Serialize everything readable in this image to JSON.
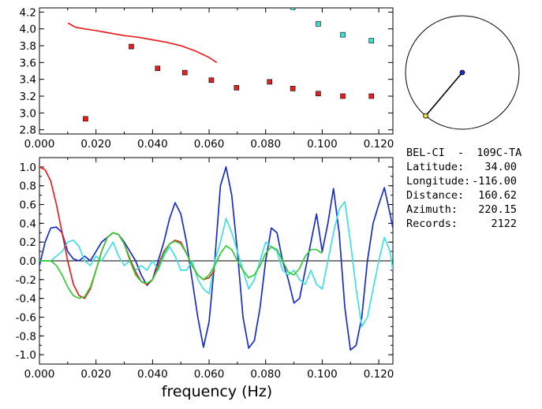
{
  "chart_data": [
    {
      "type": "scatter",
      "xlim": [
        0.0,
        0.125
      ],
      "ylim": [
        2.75,
        4.25
      ],
      "xticks": [
        "0.000",
        "0.020",
        "0.040",
        "0.060",
        "0.080",
        "0.100",
        "0.120"
      ],
      "yticks": [
        "2.8",
        "3.0",
        "3.2",
        "3.4",
        "3.6",
        "3.8",
        "4.0",
        "4.2"
      ],
      "grid": false,
      "series": [
        {
          "kind": "line",
          "color": "#e62020",
          "x": [
            0.0101,
            0.0127,
            0.016,
            0.02,
            0.025,
            0.03,
            0.035,
            0.04,
            0.045,
            0.05,
            0.055,
            0.06,
            0.0627
          ],
          "y": [
            4.07,
            4.02,
            4.0,
            3.98,
            3.95,
            3.92,
            3.9,
            3.87,
            3.84,
            3.8,
            3.74,
            3.66,
            3.6
          ]
        },
        {
          "kind": "markers",
          "color": "#e62020",
          "x": [
            0.0163,
            0.0325,
            0.0418,
            0.0514,
            0.0608,
            0.0697,
            0.0814,
            0.0896,
            0.0986,
            0.1073,
            0.1174
          ],
          "y": [
            2.93,
            3.79,
            3.53,
            3.48,
            3.39,
            3.3,
            3.37,
            3.29,
            3.23,
            3.2,
            3.2
          ]
        },
        {
          "kind": "markers",
          "color": "#40e0d0",
          "x": [
            0.0896,
            0.0986,
            0.1073,
            0.1174
          ],
          "y": [
            4.26,
            4.06,
            3.93,
            3.86
          ]
        }
      ]
    },
    {
      "type": "line",
      "xlim": [
        0.0,
        0.125
      ],
      "ylim": [
        -1.1,
        1.1
      ],
      "xticks": [
        "0.000",
        "0.020",
        "0.040",
        "0.060",
        "0.080",
        "0.100",
        "0.120"
      ],
      "yticks": [
        "1.0",
        "0.8",
        "0.6",
        "0.4",
        "0.2",
        "0.0",
        "-0.2",
        "-0.4",
        "-0.6",
        "-0.8",
        "-1.0"
      ],
      "xlabel": "frequency (Hz)",
      "grid": false,
      "zero_line": true,
      "series": [
        {
          "color": "#1a2ccc",
          "x": [
            0.0,
            0.002,
            0.004,
            0.006,
            0.008,
            0.01,
            0.012,
            0.014,
            0.016,
            0.018,
            0.02,
            0.022,
            0.024,
            0.026,
            0.028,
            0.03,
            0.032,
            0.034,
            0.036,
            0.038,
            0.04,
            0.042,
            0.044,
            0.046,
            0.048,
            0.05,
            0.052,
            0.054,
            0.056,
            0.058,
            0.06,
            0.062,
            0.064,
            0.066,
            0.068,
            0.07,
            0.072,
            0.074,
            0.076,
            0.078,
            0.08,
            0.082,
            0.084,
            0.086,
            0.088,
            0.09,
            0.092,
            0.094,
            0.096,
            0.098,
            0.1,
            0.102,
            0.104,
            0.106,
            0.108,
            0.11,
            0.112,
            0.114,
            0.116,
            0.118,
            0.12,
            0.122,
            0.124,
            0.125
          ],
          "y": [
            -0.05,
            0.2,
            0.35,
            0.36,
            0.3,
            0.1,
            0.02,
            0.0,
            0.05,
            0.0,
            0.1,
            0.2,
            0.25,
            0.3,
            0.28,
            0.2,
            0.1,
            0.0,
            -0.15,
            -0.26,
            -0.2,
            0.0,
            0.2,
            0.45,
            0.62,
            0.5,
            0.2,
            -0.2,
            -0.6,
            -0.92,
            -0.65,
            0.0,
            0.8,
            1.0,
            0.7,
            0.1,
            -0.6,
            -0.93,
            -0.85,
            -0.5,
            0.0,
            0.35,
            0.3,
            0.0,
            -0.2,
            -0.45,
            -0.4,
            -0.1,
            0.2,
            0.5,
            0.1,
            0.4,
            0.77,
            0.3,
            -0.5,
            -0.95,
            -0.9,
            -0.6,
            0.0,
            0.4,
            0.6,
            0.78,
            0.5,
            0.35
          ]
        },
        {
          "color": "#40e0e0",
          "x": [
            0.0,
            0.004,
            0.008,
            0.01,
            0.012,
            0.014,
            0.016,
            0.018,
            0.02,
            0.022,
            0.024,
            0.026,
            0.028,
            0.03,
            0.032,
            0.034,
            0.036,
            0.038,
            0.04,
            0.042,
            0.044,
            0.046,
            0.048,
            0.05,
            0.052,
            0.054,
            0.056,
            0.058,
            0.06,
            0.062,
            0.064,
            0.066,
            0.068,
            0.07,
            0.072,
            0.074,
            0.076,
            0.078,
            0.08,
            0.082,
            0.084,
            0.086,
            0.088,
            0.09,
            0.092,
            0.094,
            0.096,
            0.098,
            0.1,
            0.102,
            0.104,
            0.106,
            0.108,
            0.11,
            0.112,
            0.114,
            0.116,
            0.118,
            0.12,
            0.122,
            0.124,
            0.125
          ],
          "y": [
            0.0,
            0.0,
            0.1,
            0.2,
            0.22,
            0.15,
            0.0,
            -0.05,
            0.05,
            0.0,
            0.1,
            0.2,
            0.05,
            -0.05,
            0.0,
            -0.1,
            -0.05,
            -0.1,
            0.0,
            -0.1,
            0.05,
            0.15,
            0.05,
            -0.1,
            -0.1,
            0.0,
            -0.2,
            -0.3,
            -0.35,
            0.0,
            0.2,
            0.45,
            0.3,
            0.1,
            -0.1,
            -0.3,
            -0.2,
            0.0,
            0.2,
            0.15,
            0.1,
            -0.1,
            -0.15,
            -0.1,
            -0.2,
            -0.25,
            -0.1,
            -0.25,
            -0.3,
            0.0,
            0.3,
            0.55,
            0.63,
            0.2,
            -0.3,
            -0.7,
            -0.6,
            -0.3,
            0.0,
            0.25,
            0.1,
            -0.1
          ]
        },
        {
          "color": "#e62020",
          "x": [
            0.0,
            0.002,
            0.004,
            0.006,
            0.008,
            0.01,
            0.012,
            0.014,
            0.016,
            0.018,
            0.02,
            0.022,
            0.024,
            0.026,
            0.028,
            0.03,
            0.032,
            0.034,
            0.036,
            0.038,
            0.04,
            0.042,
            0.044,
            0.046,
            0.048,
            0.05,
            0.052,
            0.054,
            0.056,
            0.058,
            0.06,
            0.062
          ],
          "y": [
            1.0,
            0.97,
            0.85,
            0.6,
            0.3,
            0.0,
            -0.25,
            -0.37,
            -0.4,
            -0.3,
            -0.1,
            0.1,
            0.25,
            0.3,
            0.28,
            0.18,
            0.02,
            -0.12,
            -0.22,
            -0.25,
            -0.2,
            -0.05,
            0.1,
            0.18,
            0.22,
            0.2,
            0.08,
            -0.05,
            -0.15,
            -0.2,
            -0.18,
            -0.1
          ]
        },
        {
          "color": "#33cc33",
          "x": [
            0.0,
            0.002,
            0.004,
            0.006,
            0.008,
            0.01,
            0.012,
            0.014,
            0.016,
            0.018,
            0.02,
            0.022,
            0.024,
            0.026,
            0.028,
            0.03,
            0.032,
            0.034,
            0.036,
            0.038,
            0.04,
            0.042,
            0.044,
            0.046,
            0.048,
            0.05,
            0.052,
            0.054,
            0.056,
            0.058,
            0.06,
            0.062,
            0.064,
            0.066,
            0.068,
            0.07,
            0.072,
            0.074,
            0.076,
            0.078,
            0.08,
            0.082,
            0.084,
            0.086,
            0.088,
            0.09,
            0.092,
            0.094,
            0.096,
            0.098,
            0.1
          ],
          "y": [
            0.0,
            0.0,
            0.0,
            -0.05,
            -0.15,
            -0.28,
            -0.37,
            -0.4,
            -0.38,
            -0.28,
            -0.1,
            0.1,
            0.25,
            0.3,
            0.28,
            0.18,
            0.0,
            -0.15,
            -0.22,
            -0.24,
            -0.2,
            -0.08,
            0.08,
            0.18,
            0.21,
            0.18,
            0.08,
            -0.05,
            -0.15,
            -0.2,
            -0.15,
            -0.05,
            0.08,
            0.16,
            0.12,
            0.0,
            -0.1,
            -0.18,
            -0.15,
            -0.05,
            0.08,
            0.15,
            0.12,
            0.0,
            -0.12,
            -0.15,
            -0.08,
            0.05,
            0.12,
            0.12,
            0.08
          ]
        }
      ]
    }
  ],
  "info": {
    "station_pair": "BEL-CI  -  109C-TA",
    "latitude_label": "Latitude:",
    "latitude_value": "34.00",
    "longitude_label": "Longitude:",
    "longitude_value": "-116.00",
    "distance_label": "Distance:",
    "distance_value": "160.62",
    "azimuth_label": "Azimuth:",
    "azimuth_value": "220.15",
    "records_label": "Records:",
    "records_value": "2122"
  },
  "azimuth_dial": {
    "azimuth_deg": 220.15,
    "center_dot_color": "#1a2ccc",
    "end_dot_color": "#f0e040"
  }
}
